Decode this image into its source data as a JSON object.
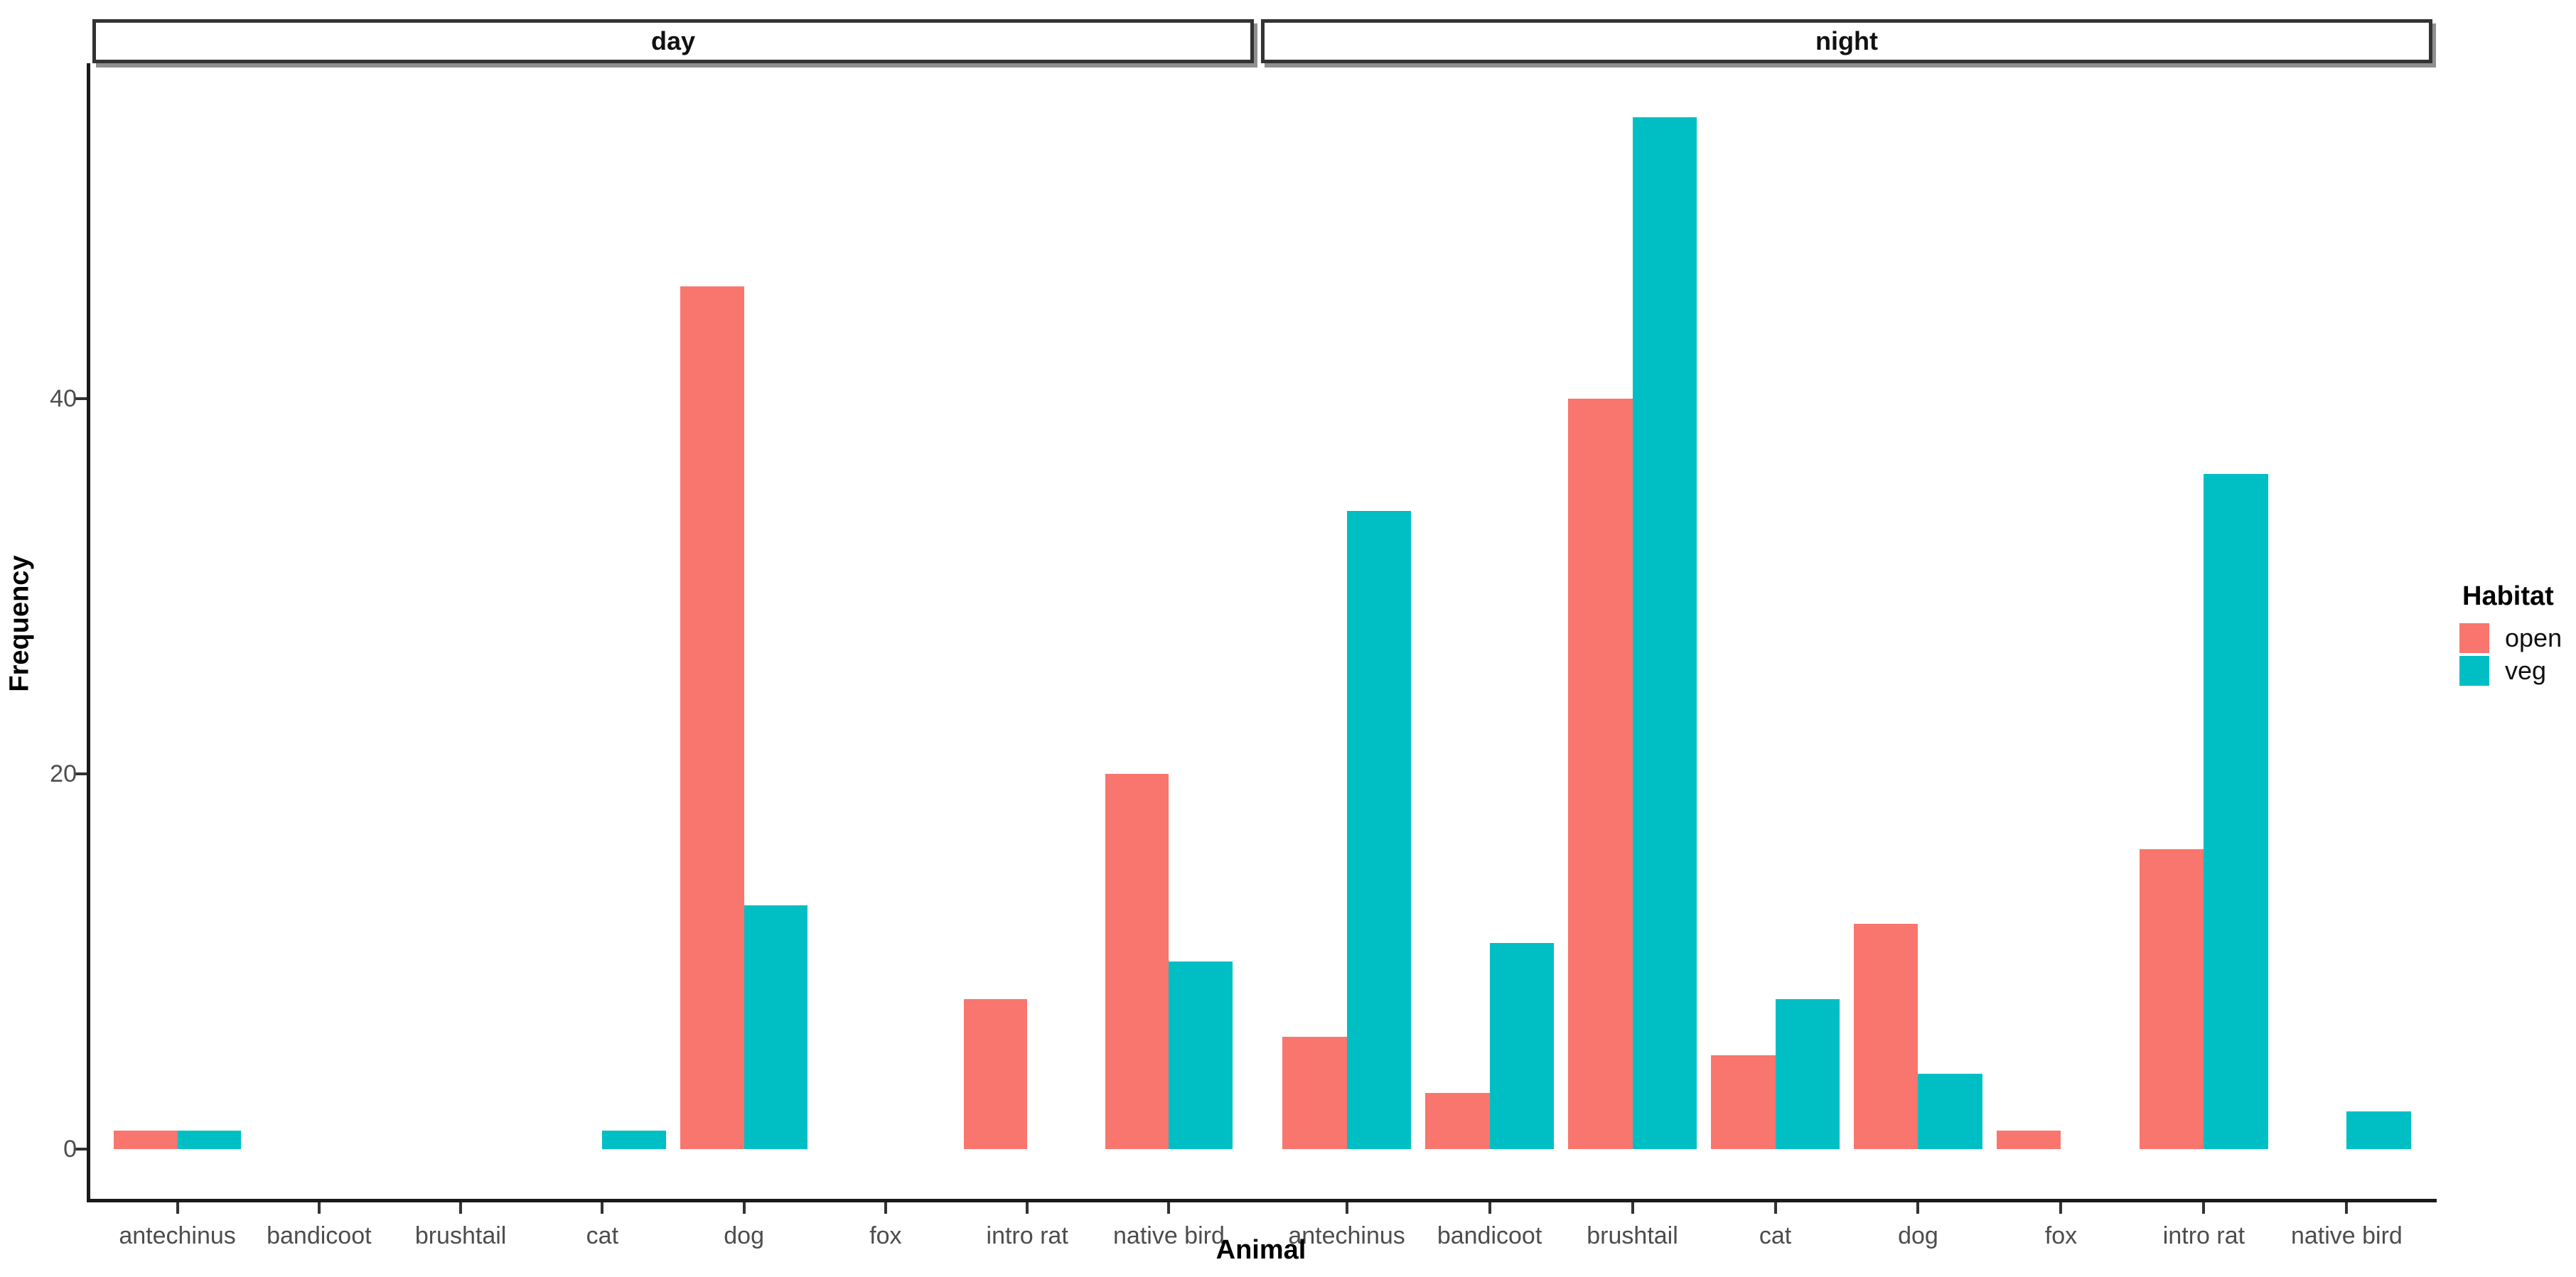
{
  "chart_data": {
    "type": "bar",
    "title": "",
    "xlabel": "Animal",
    "ylabel": "Frequency",
    "yticks": [
      0,
      20,
      40
    ],
    "ylim": [
      0,
      57
    ],
    "grid": false,
    "categories": [
      "antechinus",
      "bandicoot",
      "brushtail",
      "cat",
      "dog",
      "fox",
      "intro rat",
      "native bird"
    ],
    "facets": [
      {
        "label": "day",
        "series": [
          {
            "name": "open",
            "values": [
              1,
              0,
              0,
              0,
              46,
              0,
              8,
              20
            ]
          },
          {
            "name": "veg",
            "values": [
              1,
              0,
              0,
              1,
              13,
              0,
              0,
              10
            ]
          }
        ]
      },
      {
        "label": "night",
        "series": [
          {
            "name": "open",
            "values": [
              6,
              3,
              40,
              5,
              12,
              1,
              16,
              0
            ]
          },
          {
            "name": "veg",
            "values": [
              34,
              11,
              55,
              8,
              4,
              0,
              36,
              2
            ]
          }
        ]
      }
    ],
    "legend": {
      "title": "Habitat",
      "position": "right",
      "entries": [
        {
          "label": "open",
          "color": "#F8766D"
        },
        {
          "label": "veg",
          "color": "#00BFC4"
        }
      ]
    }
  },
  "colors": {
    "open": "#F8766D",
    "veg": "#00BFC4",
    "axis_line": "#1a1a1a",
    "tick_label": "#4D4D4D",
    "strip_border": "#333333",
    "background": "#FFFFFF"
  }
}
